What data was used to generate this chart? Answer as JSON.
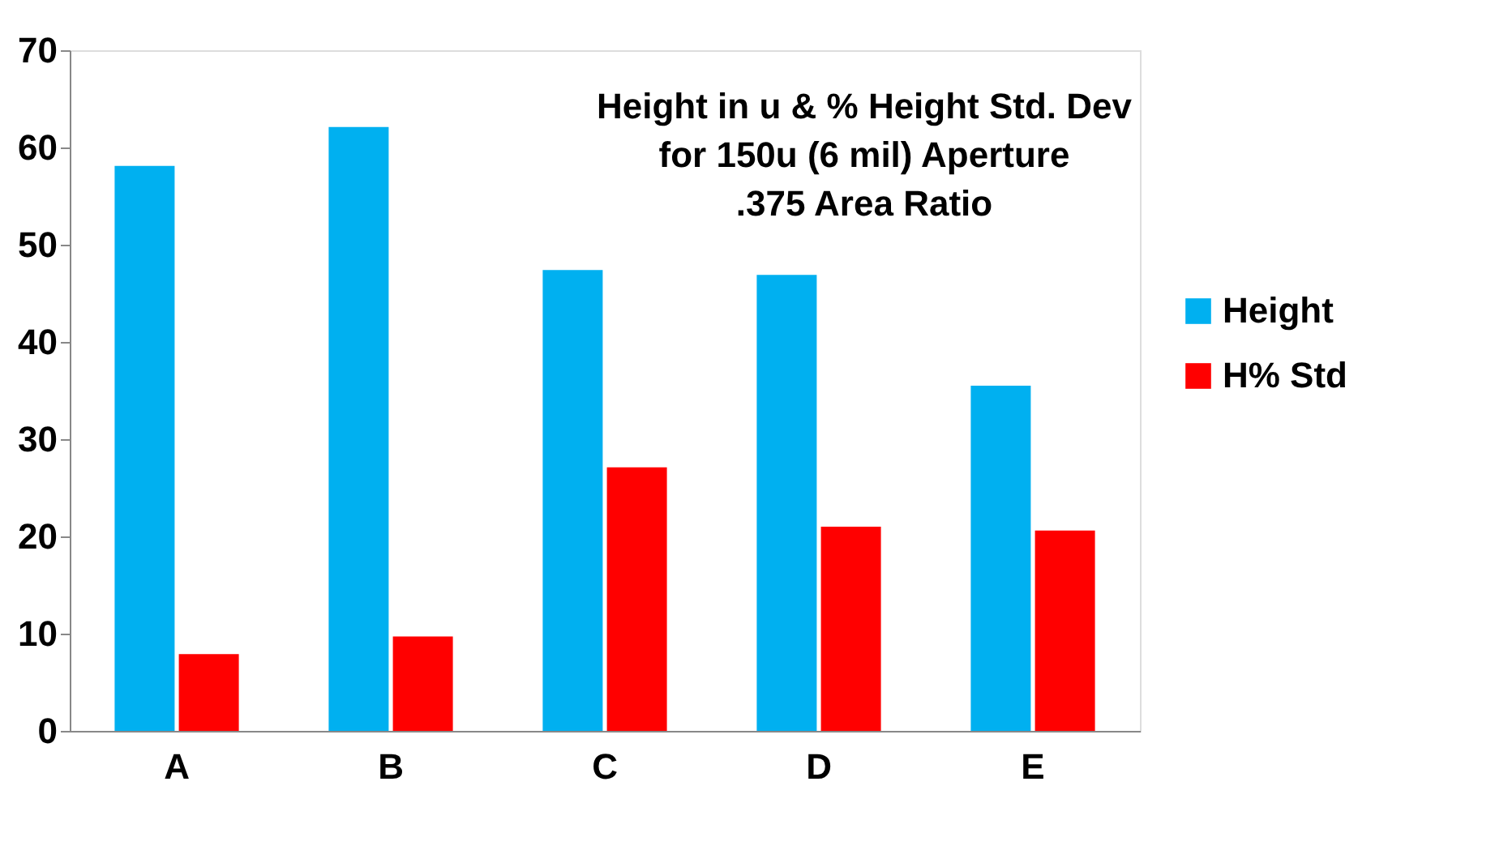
{
  "chart_data": {
    "type": "bar",
    "title": [
      "Height in u & % Height Std. Dev",
      "for 150u (6 mil) Aperture",
      ".375 Area Ratio"
    ],
    "categories": [
      "A",
      "B",
      "C",
      "D",
      "E"
    ],
    "series": [
      {
        "name": "Height",
        "color": "#00b0f0",
        "values": [
          58.1,
          62.1,
          47.4,
          46.9,
          35.5
        ]
      },
      {
        "name": "H% Std",
        "color": "#ff0000",
        "values": [
          7.9,
          9.7,
          27.1,
          21.0,
          20.6
        ]
      }
    ],
    "ylim": [
      0,
      70
    ],
    "yticks": [
      0,
      10,
      20,
      30,
      40,
      50,
      60,
      70
    ],
    "grid": false,
    "legend": "right"
  }
}
